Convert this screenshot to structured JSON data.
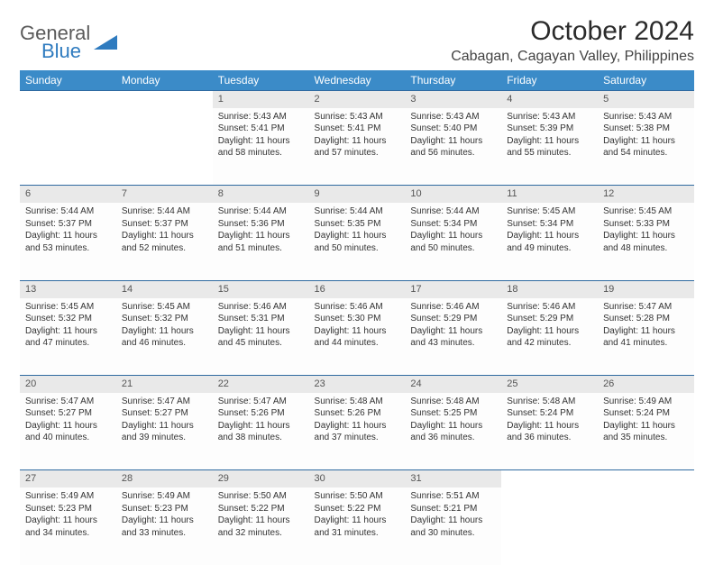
{
  "logo": {
    "word1": "General",
    "word2": "Blue",
    "accent_color": "#2f7bbf",
    "text_color": "#5a5a5a"
  },
  "title": "October 2024",
  "location": "Cabagan, Cagayan Valley, Philippines",
  "header_bg": "#3b8bc8",
  "header_text_color": "#ffffff",
  "daynum_bg": "#e9e9e9",
  "row_divider_color": "#2f6aa0",
  "cell_bg": "#fdfdfd",
  "day_headers": [
    "Sunday",
    "Monday",
    "Tuesday",
    "Wednesday",
    "Thursday",
    "Friday",
    "Saturday"
  ],
  "weeks": [
    [
      null,
      null,
      {
        "d": "1",
        "sr": "5:43 AM",
        "ss": "5:41 PM",
        "dl": "11 hours and 58 minutes."
      },
      {
        "d": "2",
        "sr": "5:43 AM",
        "ss": "5:41 PM",
        "dl": "11 hours and 57 minutes."
      },
      {
        "d": "3",
        "sr": "5:43 AM",
        "ss": "5:40 PM",
        "dl": "11 hours and 56 minutes."
      },
      {
        "d": "4",
        "sr": "5:43 AM",
        "ss": "5:39 PM",
        "dl": "11 hours and 55 minutes."
      },
      {
        "d": "5",
        "sr": "5:43 AM",
        "ss": "5:38 PM",
        "dl": "11 hours and 54 minutes."
      }
    ],
    [
      {
        "d": "6",
        "sr": "5:44 AM",
        "ss": "5:37 PM",
        "dl": "11 hours and 53 minutes."
      },
      {
        "d": "7",
        "sr": "5:44 AM",
        "ss": "5:37 PM",
        "dl": "11 hours and 52 minutes."
      },
      {
        "d": "8",
        "sr": "5:44 AM",
        "ss": "5:36 PM",
        "dl": "11 hours and 51 minutes."
      },
      {
        "d": "9",
        "sr": "5:44 AM",
        "ss": "5:35 PM",
        "dl": "11 hours and 50 minutes."
      },
      {
        "d": "10",
        "sr": "5:44 AM",
        "ss": "5:34 PM",
        "dl": "11 hours and 50 minutes."
      },
      {
        "d": "11",
        "sr": "5:45 AM",
        "ss": "5:34 PM",
        "dl": "11 hours and 49 minutes."
      },
      {
        "d": "12",
        "sr": "5:45 AM",
        "ss": "5:33 PM",
        "dl": "11 hours and 48 minutes."
      }
    ],
    [
      {
        "d": "13",
        "sr": "5:45 AM",
        "ss": "5:32 PM",
        "dl": "11 hours and 47 minutes."
      },
      {
        "d": "14",
        "sr": "5:45 AM",
        "ss": "5:32 PM",
        "dl": "11 hours and 46 minutes."
      },
      {
        "d": "15",
        "sr": "5:46 AM",
        "ss": "5:31 PM",
        "dl": "11 hours and 45 minutes."
      },
      {
        "d": "16",
        "sr": "5:46 AM",
        "ss": "5:30 PM",
        "dl": "11 hours and 44 minutes."
      },
      {
        "d": "17",
        "sr": "5:46 AM",
        "ss": "5:29 PM",
        "dl": "11 hours and 43 minutes."
      },
      {
        "d": "18",
        "sr": "5:46 AM",
        "ss": "5:29 PM",
        "dl": "11 hours and 42 minutes."
      },
      {
        "d": "19",
        "sr": "5:47 AM",
        "ss": "5:28 PM",
        "dl": "11 hours and 41 minutes."
      }
    ],
    [
      {
        "d": "20",
        "sr": "5:47 AM",
        "ss": "5:27 PM",
        "dl": "11 hours and 40 minutes."
      },
      {
        "d": "21",
        "sr": "5:47 AM",
        "ss": "5:27 PM",
        "dl": "11 hours and 39 minutes."
      },
      {
        "d": "22",
        "sr": "5:47 AM",
        "ss": "5:26 PM",
        "dl": "11 hours and 38 minutes."
      },
      {
        "d": "23",
        "sr": "5:48 AM",
        "ss": "5:26 PM",
        "dl": "11 hours and 37 minutes."
      },
      {
        "d": "24",
        "sr": "5:48 AM",
        "ss": "5:25 PM",
        "dl": "11 hours and 36 minutes."
      },
      {
        "d": "25",
        "sr": "5:48 AM",
        "ss": "5:24 PM",
        "dl": "11 hours and 36 minutes."
      },
      {
        "d": "26",
        "sr": "5:49 AM",
        "ss": "5:24 PM",
        "dl": "11 hours and 35 minutes."
      }
    ],
    [
      {
        "d": "27",
        "sr": "5:49 AM",
        "ss": "5:23 PM",
        "dl": "11 hours and 34 minutes."
      },
      {
        "d": "28",
        "sr": "5:49 AM",
        "ss": "5:23 PM",
        "dl": "11 hours and 33 minutes."
      },
      {
        "d": "29",
        "sr": "5:50 AM",
        "ss": "5:22 PM",
        "dl": "11 hours and 32 minutes."
      },
      {
        "d": "30",
        "sr": "5:50 AM",
        "ss": "5:22 PM",
        "dl": "11 hours and 31 minutes."
      },
      {
        "d": "31",
        "sr": "5:51 AM",
        "ss": "5:21 PM",
        "dl": "11 hours and 30 minutes."
      },
      null,
      null
    ]
  ],
  "labels": {
    "sunrise": "Sunrise:",
    "sunset": "Sunset:",
    "daylight": "Daylight:"
  }
}
